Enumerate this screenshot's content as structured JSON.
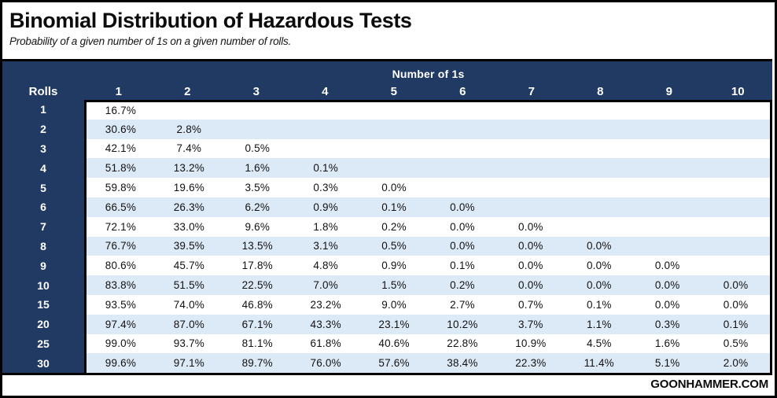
{
  "title": "Binomial Distribution of Hazardous Tests",
  "subtitle": "Probability of a given number of 1s on a given number of rolls.",
  "footer": {
    "brand": "GOONHAMMER.COM"
  },
  "colors": {
    "navy": "#203a63",
    "row_alt": "#dce9f6",
    "row_base": "#ffffff",
    "line": "#000000"
  },
  "chart_data": {
    "type": "table",
    "title": "Binomial Distribution of Hazardous Tests",
    "subtitle": "Probability of a given number of 1s on a given number of rolls.",
    "group_header": "Number of 1s",
    "row_header": "Rolls",
    "columns": [
      "1",
      "2",
      "3",
      "4",
      "5",
      "6",
      "7",
      "8",
      "9",
      "10"
    ],
    "rows": [
      {
        "rolls": "1",
        "values": [
          "16.7%",
          "",
          "",
          "",
          "",
          "",
          "",
          "",
          "",
          ""
        ]
      },
      {
        "rolls": "2",
        "values": [
          "30.6%",
          "2.8%",
          "",
          "",
          "",
          "",
          "",
          "",
          "",
          ""
        ]
      },
      {
        "rolls": "3",
        "values": [
          "42.1%",
          "7.4%",
          "0.5%",
          "",
          "",
          "",
          "",
          "",
          "",
          ""
        ]
      },
      {
        "rolls": "4",
        "values": [
          "51.8%",
          "13.2%",
          "1.6%",
          "0.1%",
          "",
          "",
          "",
          "",
          "",
          ""
        ]
      },
      {
        "rolls": "5",
        "values": [
          "59.8%",
          "19.6%",
          "3.5%",
          "0.3%",
          "0.0%",
          "",
          "",
          "",
          "",
          ""
        ]
      },
      {
        "rolls": "6",
        "values": [
          "66.5%",
          "26.3%",
          "6.2%",
          "0.9%",
          "0.1%",
          "0.0%",
          "",
          "",
          "",
          ""
        ]
      },
      {
        "rolls": "7",
        "values": [
          "72.1%",
          "33.0%",
          "9.6%",
          "1.8%",
          "0.2%",
          "0.0%",
          "0.0%",
          "",
          "",
          ""
        ]
      },
      {
        "rolls": "8",
        "values": [
          "76.7%",
          "39.5%",
          "13.5%",
          "3.1%",
          "0.5%",
          "0.0%",
          "0.0%",
          "0.0%",
          "",
          ""
        ]
      },
      {
        "rolls": "9",
        "values": [
          "80.6%",
          "45.7%",
          "17.8%",
          "4.8%",
          "0.9%",
          "0.1%",
          "0.0%",
          "0.0%",
          "0.0%",
          ""
        ]
      },
      {
        "rolls": "10",
        "values": [
          "83.8%",
          "51.5%",
          "22.5%",
          "7.0%",
          "1.5%",
          "0.2%",
          "0.0%",
          "0.0%",
          "0.0%",
          "0.0%"
        ]
      },
      {
        "rolls": "15",
        "values": [
          "93.5%",
          "74.0%",
          "46.8%",
          "23.2%",
          "9.0%",
          "2.7%",
          "0.7%",
          "0.1%",
          "0.0%",
          "0.0%"
        ]
      },
      {
        "rolls": "20",
        "values": [
          "97.4%",
          "87.0%",
          "67.1%",
          "43.3%",
          "23.1%",
          "10.2%",
          "3.7%",
          "1.1%",
          "0.3%",
          "0.1%"
        ]
      },
      {
        "rolls": "25",
        "values": [
          "99.0%",
          "93.7%",
          "81.1%",
          "61.8%",
          "40.6%",
          "22.8%",
          "10.9%",
          "4.5%",
          "1.6%",
          "0.5%"
        ]
      },
      {
        "rolls": "30",
        "values": [
          "99.6%",
          "97.1%",
          "89.7%",
          "76.0%",
          "57.6%",
          "38.4%",
          "22.3%",
          "11.4%",
          "5.1%",
          "2.0%"
        ]
      }
    ]
  }
}
